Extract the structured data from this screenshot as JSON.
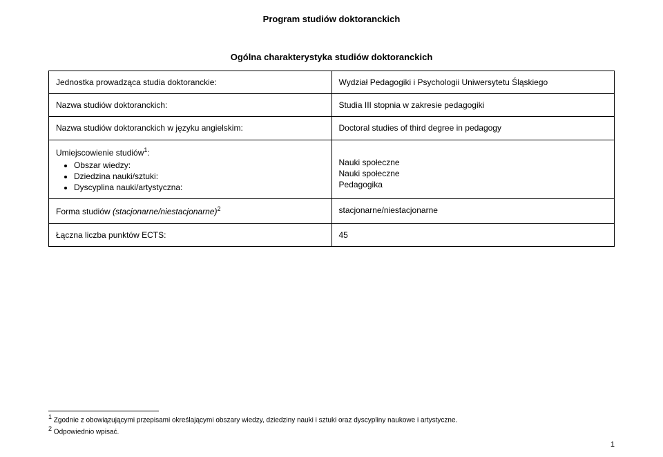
{
  "main_title": "Program studiów doktoranckich",
  "section_title": "Ogólna charakterystyka studiów doktoranckich",
  "rows": {
    "r1": {
      "label": "Jednostka prowadząca studia doktoranckie:",
      "value": "Wydział Pedagogiki i Psychologii Uniwersytetu Śląskiego"
    },
    "r2": {
      "label": "Nazwa studiów doktoranckich:",
      "value": "Studia III stopnia w zakresie pedagogiki"
    },
    "r3": {
      "label": "Nazwa studiów doktoranckich w języku angielskim:",
      "value": "Doctoral studies of third degree in pedagogy"
    },
    "r4": {
      "label_prefix": "Umiejscowienie studiów",
      "label_sup": "1",
      "label_suffix": ":",
      "bullets": [
        "Obszar wiedzy:",
        "Dziedzina nauki/sztuki:",
        "Dyscyplina nauki/artystyczna:"
      ],
      "value_lines": [
        "Nauki społeczne",
        "Nauki społeczne",
        "Pedagogika"
      ]
    },
    "r5": {
      "label_prefix": "Forma studiów ",
      "label_italic": "(stacjonarne/niestacjonarne)",
      "label_sup": "2",
      "value": "stacjonarne/niestacjonarne"
    },
    "r6": {
      "label": "Łączna liczba punktów ECTS:",
      "value": "45"
    }
  },
  "footnotes": {
    "f1_sup": "1",
    "f1_text": " Zgodnie z obowiązującymi przepisami określającymi obszary wiedzy, dziedziny nauki i sztuki oraz dyscypliny naukowe i artystyczne.",
    "f2_sup": "2",
    "f2_text": " Odpowiednio wpisać."
  },
  "page_number": "1"
}
